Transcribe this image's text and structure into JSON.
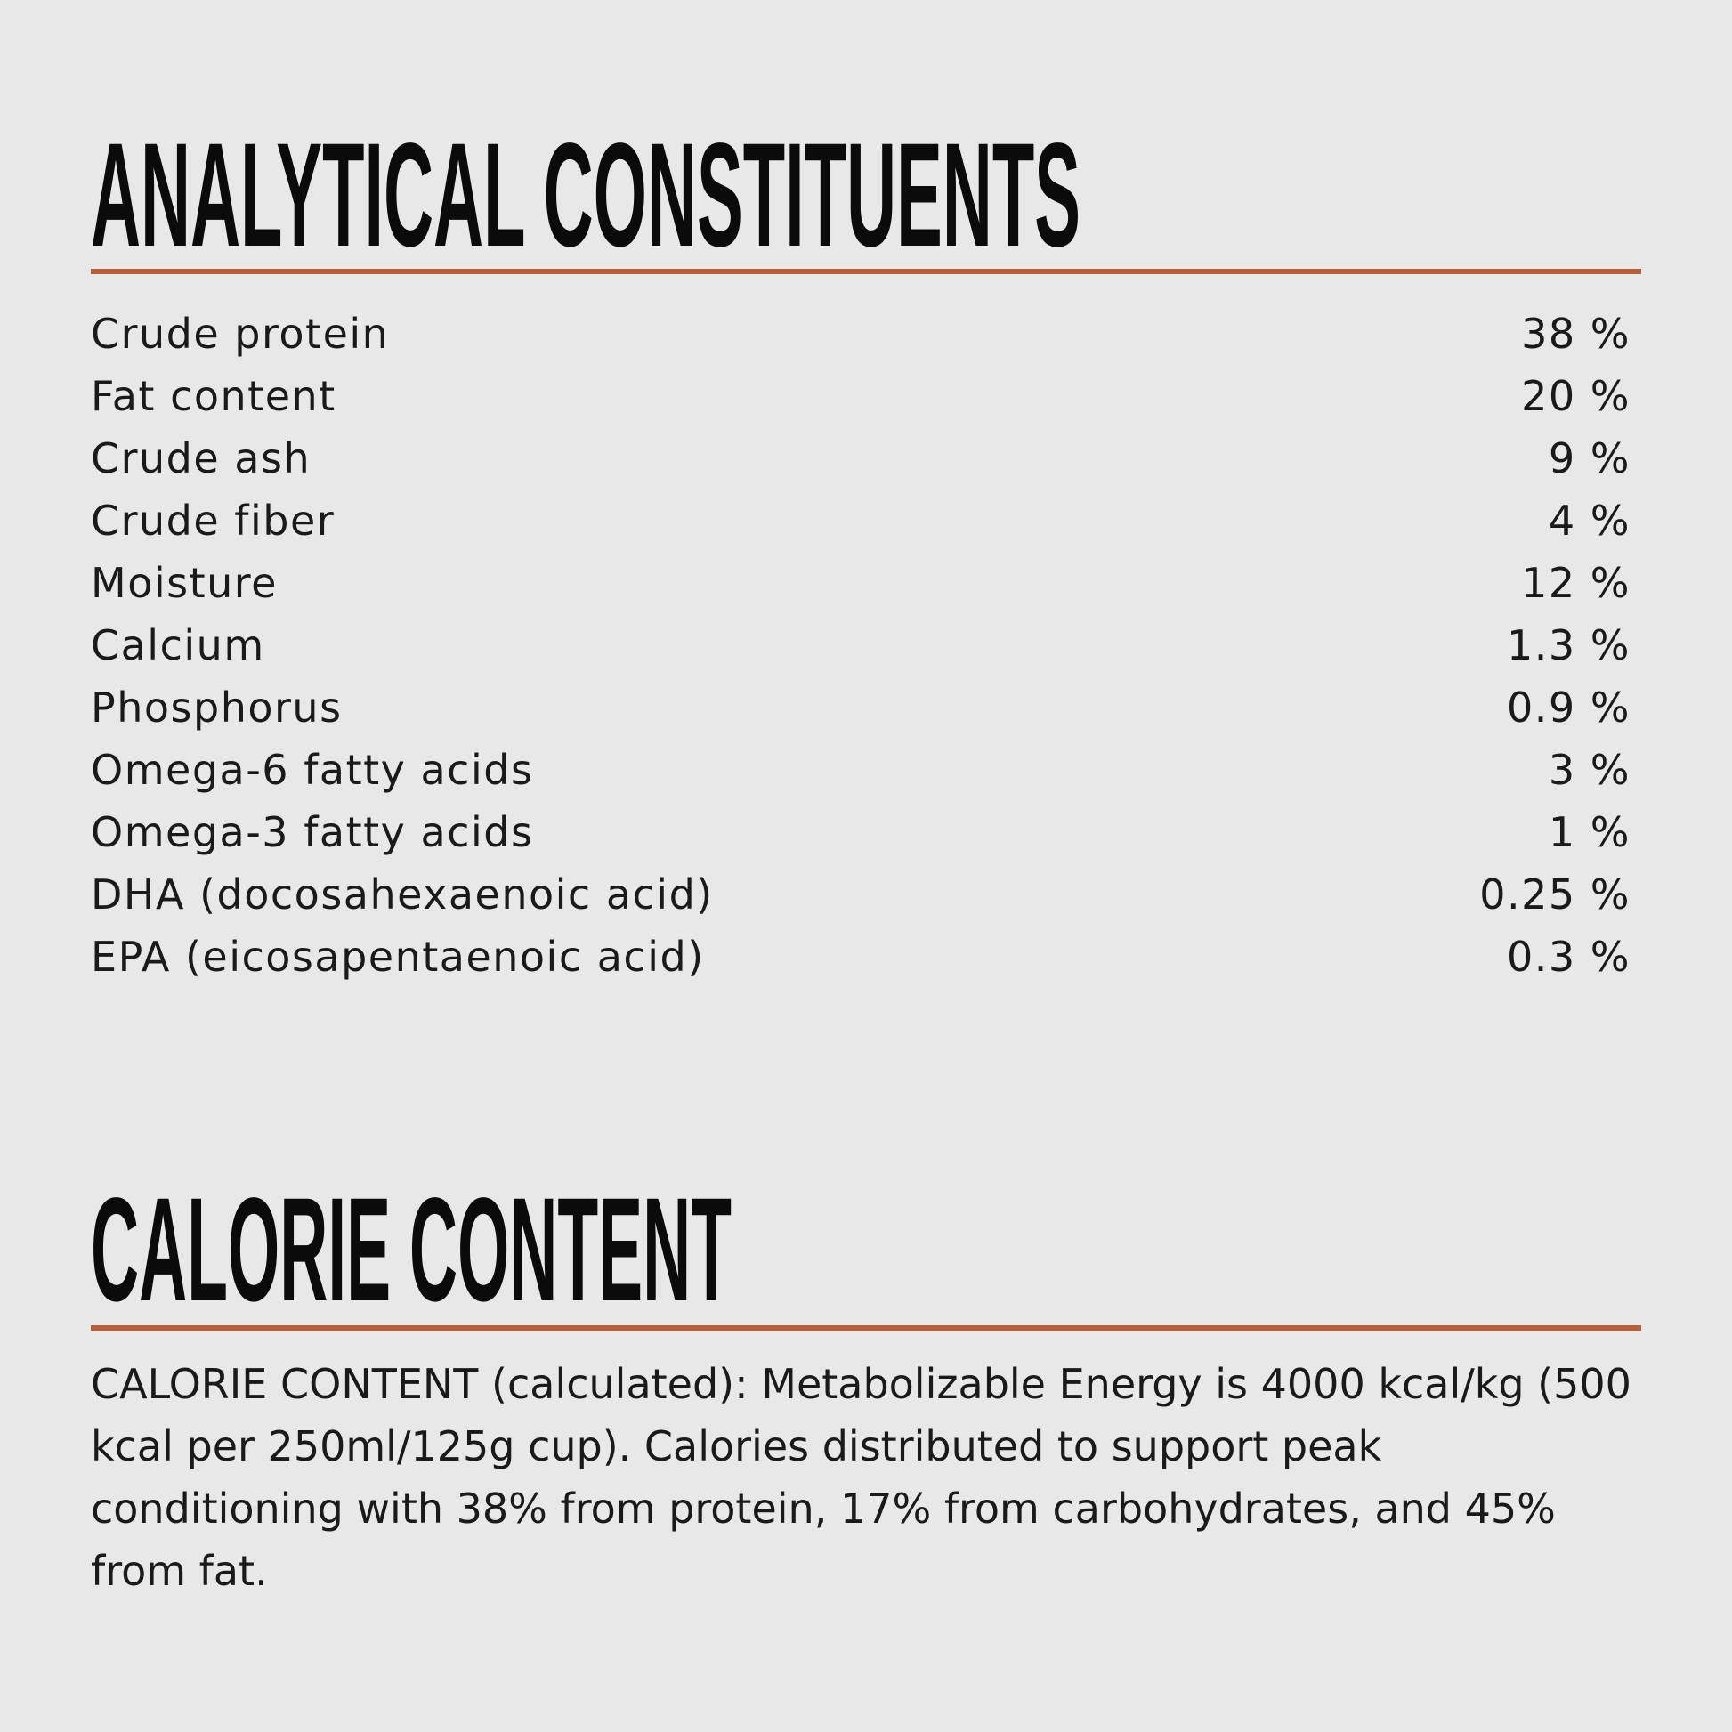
{
  "sections": [
    {
      "title": "ANALYTICAL CONSTITUENTS",
      "rows": [
        [
          "Crude protein",
          "38 %"
        ],
        [
          "Fat content",
          "20 %"
        ],
        [
          "Crude ash",
          "9 %"
        ],
        [
          "Crude fiber",
          "4 %"
        ],
        [
          "Moisture",
          "12 %"
        ],
        [
          "Calcium",
          "1.3 %"
        ],
        [
          "Phosphorus",
          "0.9 %"
        ],
        [
          "Omega-6 fatty acids",
          "3 %"
        ],
        [
          "Omega-3 fatty acids",
          "1 %"
        ],
        [
          "DHA (docosahexaenoic acid)",
          "0.25 %"
        ],
        [
          "EPA (eicosapentaenoic acid)",
          "0.3 %"
        ]
      ]
    },
    {
      "title": "CALORIE CONTENT",
      "text": "CALORIE CONTENT (calculated): Metabolizable Energy is 4000 kcal/kg (500 kcal per 250ml/125g cup). Calories distributed to support peak conditioning with 38% from protein, 17% from carbohydrates, and 45% from fat."
    }
  ]
}
